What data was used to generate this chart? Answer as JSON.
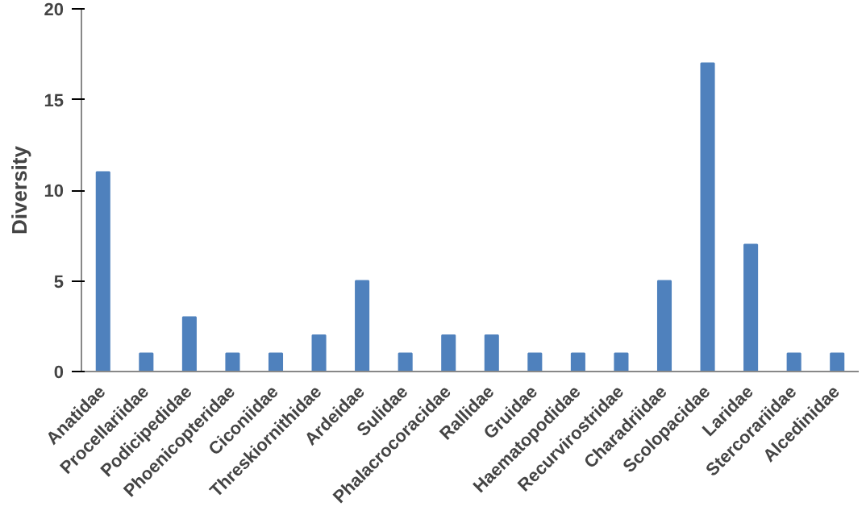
{
  "chart_data": {
    "type": "bar",
    "ylabel": "Diversity",
    "categories": [
      "Anatidae",
      "Procellariidae",
      "Podicipedidae",
      "Phoenicopteridae",
      "Ciconiidae",
      "Threskiornithidae",
      "Ardeidae",
      "Sulidae",
      "Phalacrocoracidae",
      "Rallidae",
      "Gruidae",
      "Haematopodidae",
      "Recurvirostridae",
      "Charadriidae",
      "Scolopacidae",
      "Laridae",
      "Stercorariidae",
      "Alcedinidae"
    ],
    "values": [
      11,
      1,
      3,
      1,
      1,
      2,
      5,
      1,
      2,
      2,
      1,
      1,
      1,
      5,
      17,
      7,
      1,
      1
    ],
    "color": "#4f81bd",
    "ylim": [
      0,
      20
    ],
    "yticks": [
      0,
      5,
      10,
      15,
      20
    ],
    "grid": false
  }
}
